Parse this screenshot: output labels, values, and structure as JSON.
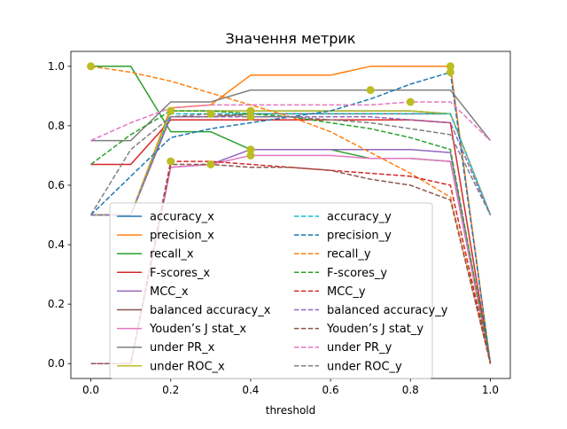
{
  "chart_data": {
    "type": "line",
    "title": "Значення метрик",
    "xlabel": "threshold",
    "ylabel": "",
    "xlim": [
      -0.05,
      1.05
    ],
    "ylim": [
      -0.05,
      1.05
    ],
    "x": [
      0.0,
      0.1,
      0.2,
      0.3,
      0.4,
      0.5,
      0.6,
      0.7,
      0.8,
      0.9,
      1.0
    ],
    "x_ticks": [
      "0.0",
      "0.2",
      "0.4",
      "0.6",
      "0.8",
      "1.0"
    ],
    "y_ticks": [
      "0.0",
      "0.2",
      "0.4",
      "0.6",
      "0.8",
      "1.0"
    ],
    "grid": false,
    "legend_position": "lower-center",
    "legend_columns": 2,
    "series": [
      {
        "name": "accuracy_x",
        "color": "#1f77b4",
        "dash": "solid",
        "values": [
          0.5,
          0.5,
          0.85,
          0.85,
          0.85,
          0.85,
          0.85,
          0.85,
          0.85,
          0.84,
          0.5
        ]
      },
      {
        "name": "precision_x",
        "color": "#ff7f0e",
        "dash": "solid",
        "values": [
          0.5,
          0.5,
          0.86,
          0.87,
          0.97,
          0.97,
          0.97,
          1.0,
          1.0,
          1.0,
          0.0
        ]
      },
      {
        "name": "recall_x",
        "color": "#2ca02c",
        "dash": "solid",
        "values": [
          1.0,
          1.0,
          0.78,
          0.78,
          0.72,
          0.72,
          0.72,
          0.69,
          0.69,
          0.68,
          0.0
        ]
      },
      {
        "name": "F-scores_x",
        "color": "#d62728",
        "dash": "solid",
        "values": [
          0.67,
          0.67,
          0.82,
          0.82,
          0.82,
          0.82,
          0.82,
          0.82,
          0.82,
          0.81,
          0.0
        ]
      },
      {
        "name": "MCC_x",
        "color": "#9467bd",
        "dash": "solid",
        "values": [
          0.0,
          0.0,
          0.66,
          0.67,
          0.72,
          0.72,
          0.72,
          0.72,
          0.72,
          0.71,
          0.0
        ]
      },
      {
        "name": "balanced accuracy_x",
        "color": "#8c564b",
        "dash": "solid",
        "values": [
          0.5,
          0.5,
          0.83,
          0.83,
          0.84,
          0.84,
          0.84,
          0.84,
          0.84,
          0.84,
          0.5
        ]
      },
      {
        "name": "Youden’s J stat_x",
        "color": "#e377c2",
        "dash": "solid",
        "values": [
          0.0,
          0.0,
          0.66,
          0.67,
          0.7,
          0.7,
          0.7,
          0.69,
          0.69,
          0.68,
          0.0
        ]
      },
      {
        "name": "under PR_x",
        "color": "#7f7f7f",
        "dash": "solid",
        "values": [
          0.75,
          0.75,
          0.88,
          0.88,
          0.92,
          0.92,
          0.92,
          0.92,
          0.92,
          0.92,
          0.75
        ]
      },
      {
        "name": "under ROC_x",
        "color": "#bcbd22",
        "dash": "solid",
        "values": [
          0.5,
          0.5,
          0.85,
          0.85,
          0.85,
          0.85,
          0.85,
          0.85,
          0.85,
          0.84,
          0.5
        ]
      },
      {
        "name": "accuracy_y",
        "color": "#17becf",
        "dash": "dashed",
        "values": [
          0.5,
          0.5,
          0.84,
          0.84,
          0.84,
          0.84,
          0.84,
          0.84,
          0.84,
          0.84,
          0.5
        ]
      },
      {
        "name": "precision_y",
        "color": "#1f77b4",
        "dash": "dashed",
        "values": [
          0.5,
          0.63,
          0.76,
          0.79,
          0.81,
          0.83,
          0.85,
          0.89,
          0.94,
          0.98,
          0.0
        ]
      },
      {
        "name": "recall_y",
        "color": "#ff7f0e",
        "dash": "dashed",
        "values": [
          1.0,
          0.98,
          0.95,
          0.91,
          0.87,
          0.83,
          0.78,
          0.71,
          0.64,
          0.56,
          0.0
        ]
      },
      {
        "name": "F-scores_y",
        "color": "#2ca02c",
        "dash": "dashed",
        "values": [
          0.67,
          0.77,
          0.85,
          0.85,
          0.84,
          0.83,
          0.81,
          0.79,
          0.76,
          0.72,
          0.0
        ]
      },
      {
        "name": "MCC_y",
        "color": "#d62728",
        "dash": "dashed",
        "values": [
          0.0,
          0.0,
          0.68,
          0.68,
          0.67,
          0.66,
          0.65,
          0.64,
          0.63,
          0.6,
          0.0
        ]
      },
      {
        "name": "balanced accuracy_y",
        "color": "#9467bd",
        "dash": "dashed",
        "values": [
          0.5,
          0.5,
          0.83,
          0.83,
          0.83,
          0.83,
          0.83,
          0.83,
          0.82,
          0.81,
          0.5
        ]
      },
      {
        "name": "Youden’s J stat_y",
        "color": "#8c564b",
        "dash": "dashed",
        "values": [
          0.0,
          0.0,
          0.67,
          0.67,
          0.66,
          0.66,
          0.65,
          0.62,
          0.6,
          0.55,
          0.0
        ]
      },
      {
        "name": "under PR_y",
        "color": "#e377c2",
        "dash": "dashed",
        "values": [
          0.75,
          0.81,
          0.86,
          0.87,
          0.87,
          0.87,
          0.87,
          0.87,
          0.88,
          0.88,
          0.75
        ]
      },
      {
        "name": "under ROC_y",
        "color": "#7f7f7f",
        "dash": "dashed",
        "values": [
          0.5,
          0.72,
          0.83,
          0.84,
          0.83,
          0.83,
          0.82,
          0.81,
          0.79,
          0.77,
          0.5
        ]
      }
    ],
    "markers": {
      "color": "#bcbd22",
      "points": [
        {
          "x": 0.0,
          "y": 1.0
        },
        {
          "x": 0.2,
          "y": 0.85
        },
        {
          "x": 0.2,
          "y": 0.68
        },
        {
          "x": 0.3,
          "y": 0.84
        },
        {
          "x": 0.3,
          "y": 0.67
        },
        {
          "x": 0.4,
          "y": 0.85
        },
        {
          "x": 0.4,
          "y": 0.83
        },
        {
          "x": 0.4,
          "y": 0.72
        },
        {
          "x": 0.4,
          "y": 0.7
        },
        {
          "x": 0.7,
          "y": 0.92
        },
        {
          "x": 0.8,
          "y": 0.88
        },
        {
          "x": 0.9,
          "y": 1.0
        },
        {
          "x": 0.9,
          "y": 0.98
        }
      ]
    }
  }
}
